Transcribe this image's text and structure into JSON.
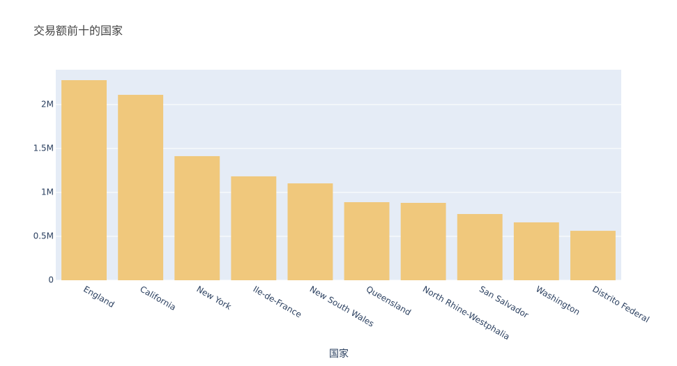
{
  "chart_data": {
    "type": "bar",
    "title": "交易额前十的国家",
    "x_label": "国家",
    "categories": [
      "England",
      "California",
      "New York",
      "Ile-de-France",
      "New South Wales",
      "Queensland",
      "North Rhine-Westphalia",
      "San Salvador",
      "Washington",
      "Distrito Federal"
    ],
    "values": [
      2278000,
      2111000,
      1413000,
      1183000,
      1103000,
      889000,
      881000,
      754000,
      659000,
      563000
    ],
    "color": "#f0c87c",
    "ylim": [
      0,
      2397000
    ],
    "yticks": [
      0,
      {
        "value": 500000,
        "label": "0.5M"
      },
      {
        "value": 1000000,
        "label": "1M"
      },
      {
        "value": 1500000,
        "label": "1.5M"
      },
      {
        "value": 2000000,
        "label": "2M"
      }
    ],
    "grid": true
  }
}
